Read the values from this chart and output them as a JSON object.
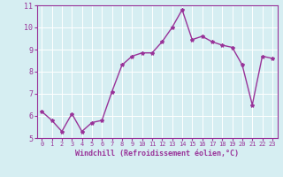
{
  "x": [
    0,
    1,
    2,
    3,
    4,
    5,
    6,
    7,
    8,
    9,
    10,
    11,
    12,
    13,
    14,
    15,
    16,
    17,
    18,
    19,
    20,
    21,
    22,
    23
  ],
  "y": [
    6.2,
    5.8,
    5.3,
    6.1,
    5.3,
    5.7,
    5.8,
    7.1,
    8.3,
    8.7,
    8.85,
    8.85,
    9.35,
    10.0,
    10.8,
    9.45,
    9.6,
    9.35,
    9.2,
    9.1,
    8.3,
    6.5,
    8.7,
    8.6
  ],
  "line_color": "#993399",
  "marker": "*",
  "marker_size": 3,
  "bg_color": "#d6eef2",
  "grid_color": "#ffffff",
  "xlabel": "Windchill (Refroidissement éolien,°C)",
  "xlabel_color": "#993399",
  "tick_color": "#993399",
  "spine_color": "#993399",
  "ylim": [
    5,
    11
  ],
  "xlim": [
    -0.5,
    23.5
  ],
  "yticks": [
    5,
    6,
    7,
    8,
    9,
    10,
    11
  ],
  "xticks": [
    0,
    1,
    2,
    3,
    4,
    5,
    6,
    7,
    8,
    9,
    10,
    11,
    12,
    13,
    14,
    15,
    16,
    17,
    18,
    19,
    20,
    21,
    22,
    23
  ],
  "xlabel_fontsize": 6,
  "tick_fontsize_x": 5,
  "tick_fontsize_y": 6,
  "linewidth": 1.0
}
